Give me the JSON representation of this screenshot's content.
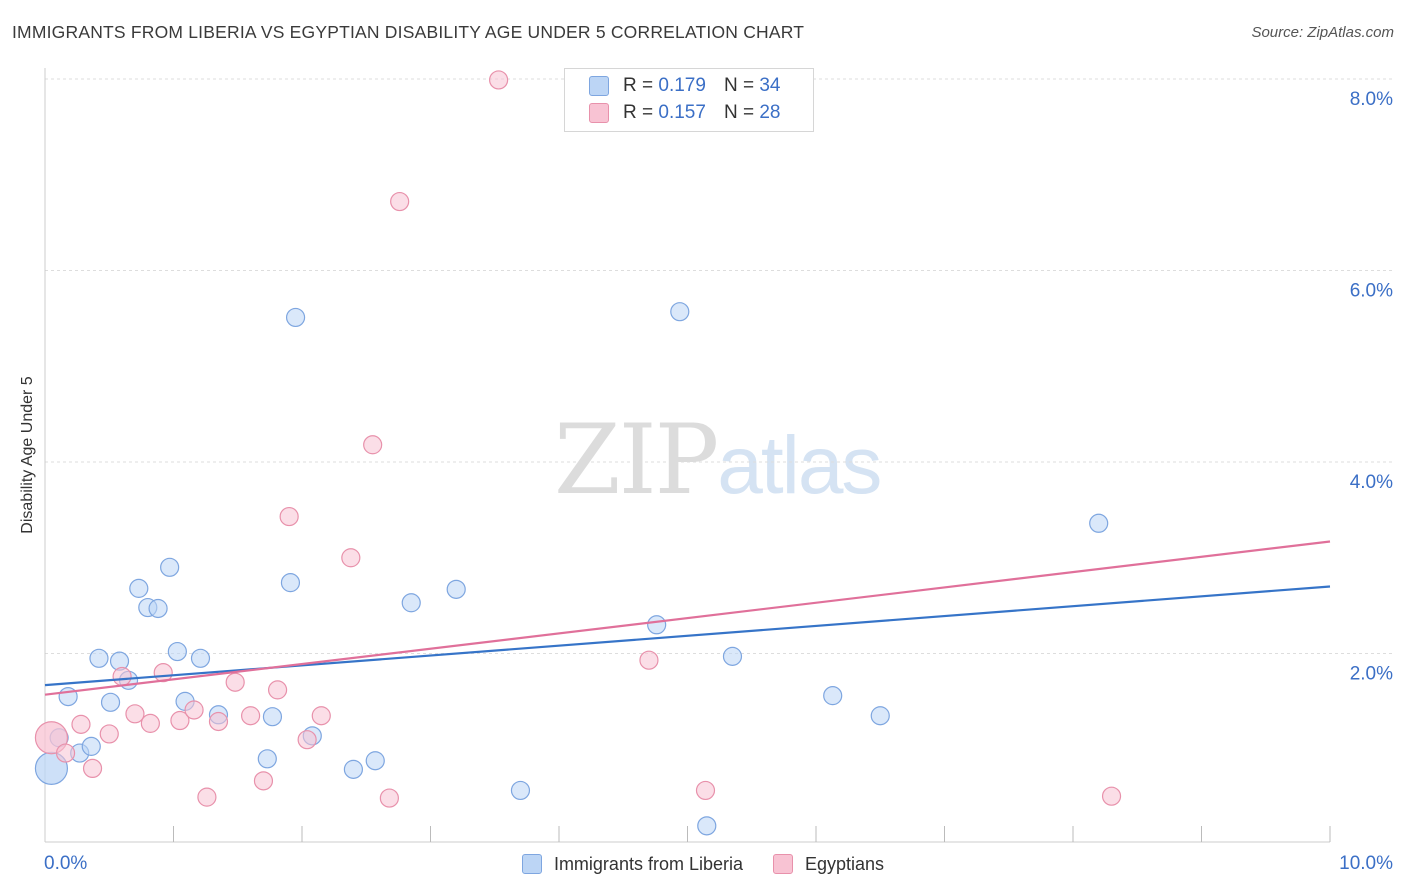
{
  "header": {
    "title": "IMMIGRANTS FROM LIBERIA VS EGYPTIAN DISABILITY AGE UNDER 5 CORRELATION CHART",
    "source": "Source: ZipAtlas.com"
  },
  "watermark": {
    "zip": "ZIP",
    "atlas": "atlas"
  },
  "legend_top": {
    "rows": [
      {
        "r_label": "R = ",
        "r_value": "0.179",
        "n_label": "N = ",
        "n_value": "34"
      },
      {
        "r_label": "R = ",
        "r_value": "0.157",
        "n_label": "N = ",
        "n_value": "28"
      }
    ]
  },
  "legend_bottom": {
    "items": [
      {
        "label": "Immigrants from Liberia"
      },
      {
        "label": "Egyptians"
      }
    ]
  },
  "colors": {
    "blue_fill": "#bcd5f5",
    "blue_stroke": "#7ea6e0",
    "blue_line": "#3674c8",
    "pink_fill": "#f8c3d3",
    "pink_stroke": "#e891ab",
    "pink_line": "#e0709a",
    "tick_label": "#3b6fc6",
    "grid": "#dddddd"
  },
  "chart_data": {
    "type": "scatter",
    "title": "IMMIGRANTS FROM LIBERIA VS EGYPTIAN DISABILITY AGE UNDER 5 CORRELATION CHART",
    "xlabel": "",
    "ylabel": "Disability Age Under 5",
    "xlim": [
      0,
      10
    ],
    "ylim": [
      0,
      8.2
    ],
    "x_tick_labels": [
      {
        "value": 0,
        "label": "0.0%"
      },
      {
        "value": 10,
        "label": "10.0%"
      }
    ],
    "y_ticks": [
      {
        "value": 2,
        "label": "2.0%"
      },
      {
        "value": 4,
        "label": "4.0%"
      },
      {
        "value": 6,
        "label": "6.0%"
      },
      {
        "value": 8,
        "label": "8.0%"
      }
    ],
    "x_minor_ticks": [
      1,
      2,
      3,
      4,
      5,
      6,
      7,
      8,
      9,
      10
    ],
    "grid": true,
    "legend_position": "bottom",
    "series": [
      {
        "name": "Immigrants from Liberia",
        "color": "#7ea6e0",
        "R": 0.179,
        "N": 34,
        "trend": {
          "x": [
            0,
            10
          ],
          "y": [
            1.67,
            2.7
          ]
        },
        "points": [
          {
            "x": 0.05,
            "y": 0.8,
            "big": true
          },
          {
            "x": 0.11,
            "y": 1.12
          },
          {
            "x": 0.18,
            "y": 1.55
          },
          {
            "x": 0.27,
            "y": 0.96
          },
          {
            "x": 0.36,
            "y": 1.03
          },
          {
            "x": 0.42,
            "y": 1.95
          },
          {
            "x": 0.51,
            "y": 1.49
          },
          {
            "x": 0.58,
            "y": 1.92
          },
          {
            "x": 0.65,
            "y": 1.72
          },
          {
            "x": 0.73,
            "y": 2.68
          },
          {
            "x": 0.8,
            "y": 2.48
          },
          {
            "x": 0.88,
            "y": 2.47
          },
          {
            "x": 0.97,
            "y": 2.9
          },
          {
            "x": 1.03,
            "y": 2.02
          },
          {
            "x": 1.09,
            "y": 1.5
          },
          {
            "x": 1.21,
            "y": 1.95
          },
          {
            "x": 1.35,
            "y": 1.36
          },
          {
            "x": 1.77,
            "y": 1.34
          },
          {
            "x": 1.73,
            "y": 0.9
          },
          {
            "x": 1.91,
            "y": 2.74
          },
          {
            "x": 1.95,
            "y": 5.51
          },
          {
            "x": 2.08,
            "y": 1.14
          },
          {
            "x": 2.4,
            "y": 0.79
          },
          {
            "x": 2.57,
            "y": 0.88
          },
          {
            "x": 2.85,
            "y": 2.53
          },
          {
            "x": 3.2,
            "y": 2.67
          },
          {
            "x": 3.7,
            "y": 0.57
          },
          {
            "x": 4.76,
            "y": 2.3
          },
          {
            "x": 4.94,
            "y": 5.57
          },
          {
            "x": 5.15,
            "y": 0.2
          },
          {
            "x": 5.35,
            "y": 1.97
          },
          {
            "x": 6.13,
            "y": 1.56
          },
          {
            "x": 6.5,
            "y": 1.35
          },
          {
            "x": 8.2,
            "y": 3.36
          }
        ]
      },
      {
        "name": "Egyptians",
        "color": "#e891ab",
        "R": 0.157,
        "N": 28,
        "trend": {
          "x": [
            0,
            10
          ],
          "y": [
            1.57,
            3.17
          ]
        },
        "points": [
          {
            "x": 0.05,
            "y": 1.12,
            "big": true
          },
          {
            "x": 0.16,
            "y": 0.96
          },
          {
            "x": 0.28,
            "y": 1.26
          },
          {
            "x": 0.37,
            "y": 0.8
          },
          {
            "x": 0.5,
            "y": 1.16
          },
          {
            "x": 0.6,
            "y": 1.76
          },
          {
            "x": 0.7,
            "y": 1.37
          },
          {
            "x": 0.82,
            "y": 1.27
          },
          {
            "x": 0.92,
            "y": 1.8
          },
          {
            "x": 1.05,
            "y": 1.3
          },
          {
            "x": 1.16,
            "y": 1.41
          },
          {
            "x": 1.26,
            "y": 0.5
          },
          {
            "x": 1.35,
            "y": 1.29
          },
          {
            "x": 1.48,
            "y": 1.7
          },
          {
            "x": 1.6,
            "y": 1.35
          },
          {
            "x": 1.7,
            "y": 0.67
          },
          {
            "x": 1.81,
            "y": 1.62
          },
          {
            "x": 1.9,
            "y": 3.43
          },
          {
            "x": 2.04,
            "y": 1.1
          },
          {
            "x": 2.15,
            "y": 1.35
          },
          {
            "x": 2.38,
            "y": 3.0
          },
          {
            "x": 2.55,
            "y": 4.18
          },
          {
            "x": 2.68,
            "y": 0.49
          },
          {
            "x": 2.76,
            "y": 6.72
          },
          {
            "x": 3.53,
            "y": 7.99
          },
          {
            "x": 4.7,
            "y": 1.93
          },
          {
            "x": 5.14,
            "y": 0.57
          },
          {
            "x": 8.3,
            "y": 0.51
          }
        ]
      }
    ]
  }
}
